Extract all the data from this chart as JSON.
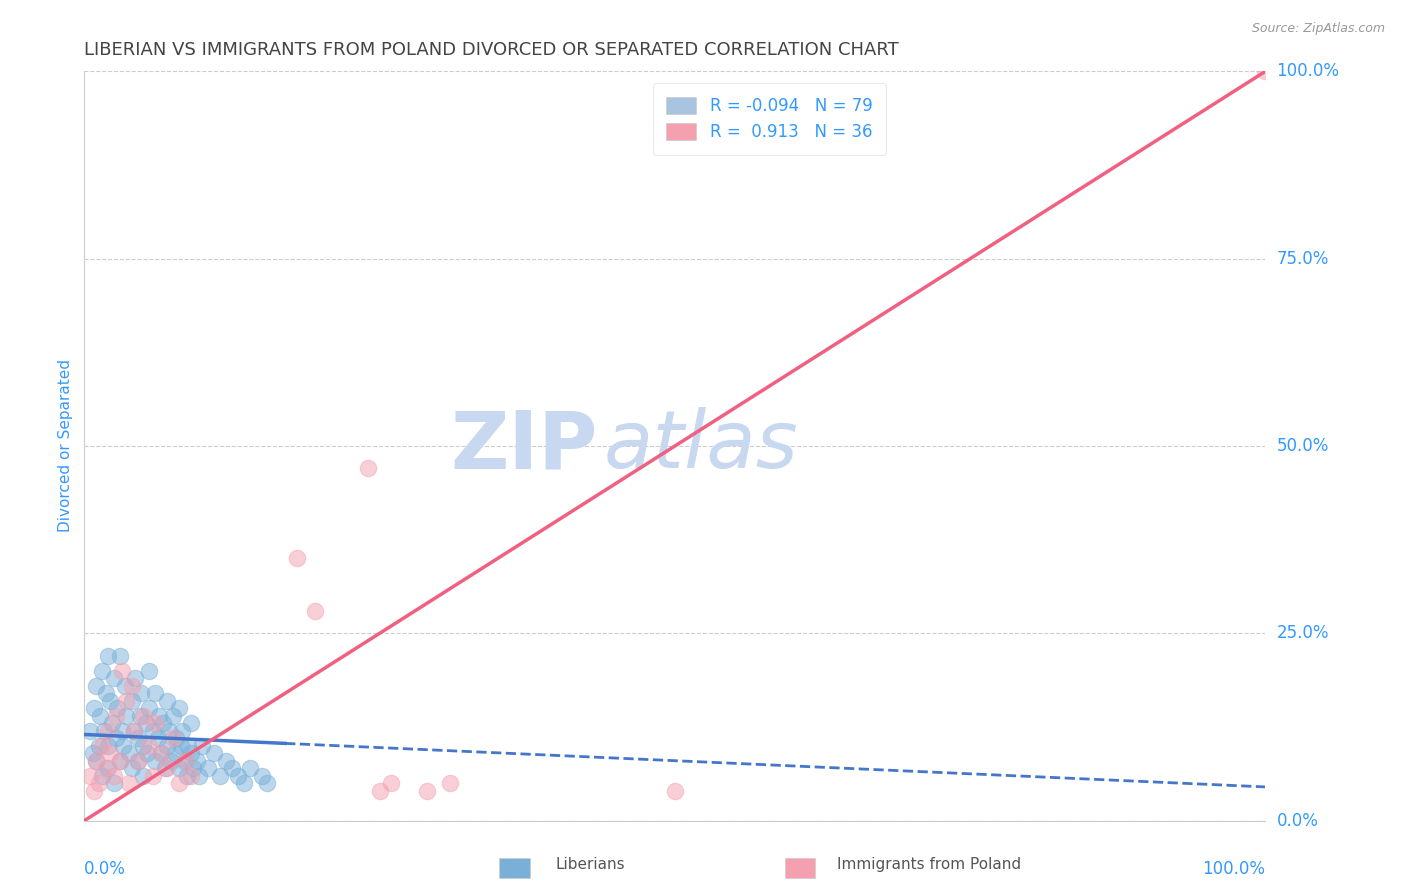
{
  "title": "LIBERIAN VS IMMIGRANTS FROM POLAND DIVORCED OR SEPARATED CORRELATION CHART",
  "source": "Source: ZipAtlas.com",
  "ylabel": "Divorced or Separated",
  "ytick_labels": [
    "0.0%",
    "25.0%",
    "50.0%",
    "75.0%",
    "100.0%"
  ],
  "ytick_values": [
    0.0,
    0.25,
    0.5,
    0.75,
    1.0
  ],
  "xlim": [
    0.0,
    1.0
  ],
  "ylim": [
    0.0,
    1.0
  ],
  "legend_entries": [
    {
      "color": "#a8c4e0",
      "R": "-0.094",
      "N": "79"
    },
    {
      "color": "#f4a0b0",
      "R": " 0.913",
      "N": "36"
    }
  ],
  "legend_R_color": "#3399ff",
  "watermark_zip": "ZIP",
  "watermark_atlas": "atlas",
  "watermark_color": "#c8d8f0",
  "blue_scatter_color": "#7ab0d8",
  "pink_scatter_color": "#f4a0b0",
  "blue_line_color": "#4477cc",
  "pink_line_color": "#f06080",
  "background_color": "#ffffff",
  "grid_color": "#cccccc",
  "axis_label_color": "#3399ff",
  "title_color": "#444444",
  "blue_dots": [
    [
      0.005,
      0.12
    ],
    [
      0.007,
      0.09
    ],
    [
      0.008,
      0.15
    ],
    [
      0.01,
      0.18
    ],
    [
      0.01,
      0.08
    ],
    [
      0.012,
      0.1
    ],
    [
      0.013,
      0.14
    ],
    [
      0.015,
      0.2
    ],
    [
      0.015,
      0.06
    ],
    [
      0.017,
      0.12
    ],
    [
      0.018,
      0.17
    ],
    [
      0.02,
      0.22
    ],
    [
      0.02,
      0.07
    ],
    [
      0.02,
      0.1
    ],
    [
      0.022,
      0.16
    ],
    [
      0.023,
      0.13
    ],
    [
      0.025,
      0.19
    ],
    [
      0.025,
      0.05
    ],
    [
      0.027,
      0.11
    ],
    [
      0.028,
      0.15
    ],
    [
      0.03,
      0.08
    ],
    [
      0.03,
      0.22
    ],
    [
      0.032,
      0.12
    ],
    [
      0.033,
      0.1
    ],
    [
      0.034,
      0.18
    ],
    [
      0.035,
      0.14
    ],
    [
      0.038,
      0.09
    ],
    [
      0.04,
      0.16
    ],
    [
      0.04,
      0.07
    ],
    [
      0.042,
      0.12
    ],
    [
      0.043,
      0.19
    ],
    [
      0.045,
      0.11
    ],
    [
      0.045,
      0.08
    ],
    [
      0.047,
      0.14
    ],
    [
      0.048,
      0.17
    ],
    [
      0.05,
      0.1
    ],
    [
      0.05,
      0.06
    ],
    [
      0.052,
      0.13
    ],
    [
      0.053,
      0.09
    ],
    [
      0.055,
      0.15
    ],
    [
      0.055,
      0.2
    ],
    [
      0.058,
      0.12
    ],
    [
      0.06,
      0.08
    ],
    [
      0.06,
      0.17
    ],
    [
      0.062,
      0.11
    ],
    [
      0.063,
      0.14
    ],
    [
      0.065,
      0.09
    ],
    [
      0.067,
      0.13
    ],
    [
      0.068,
      0.07
    ],
    [
      0.07,
      0.16
    ],
    [
      0.07,
      0.1
    ],
    [
      0.072,
      0.12
    ],
    [
      0.073,
      0.08
    ],
    [
      0.075,
      0.14
    ],
    [
      0.077,
      0.09
    ],
    [
      0.078,
      0.11
    ],
    [
      0.08,
      0.07
    ],
    [
      0.08,
      0.15
    ],
    [
      0.082,
      0.1
    ],
    [
      0.083,
      0.12
    ],
    [
      0.085,
      0.08
    ],
    [
      0.087,
      0.06
    ],
    [
      0.088,
      0.1
    ],
    [
      0.09,
      0.09
    ],
    [
      0.09,
      0.13
    ],
    [
      0.092,
      0.07
    ],
    [
      0.095,
      0.08
    ],
    [
      0.097,
      0.06
    ],
    [
      0.1,
      0.1
    ],
    [
      0.105,
      0.07
    ],
    [
      0.11,
      0.09
    ],
    [
      0.115,
      0.06
    ],
    [
      0.12,
      0.08
    ],
    [
      0.125,
      0.07
    ],
    [
      0.13,
      0.06
    ],
    [
      0.135,
      0.05
    ],
    [
      0.14,
      0.07
    ],
    [
      0.15,
      0.06
    ],
    [
      0.155,
      0.05
    ]
  ],
  "pink_dots": [
    [
      0.005,
      0.06
    ],
    [
      0.008,
      0.04
    ],
    [
      0.01,
      0.08
    ],
    [
      0.012,
      0.05
    ],
    [
      0.015,
      0.1
    ],
    [
      0.018,
      0.07
    ],
    [
      0.02,
      0.12
    ],
    [
      0.022,
      0.09
    ],
    [
      0.025,
      0.06
    ],
    [
      0.027,
      0.14
    ],
    [
      0.03,
      0.08
    ],
    [
      0.032,
      0.2
    ],
    [
      0.035,
      0.16
    ],
    [
      0.038,
      0.05
    ],
    [
      0.04,
      0.18
    ],
    [
      0.042,
      0.12
    ],
    [
      0.045,
      0.08
    ],
    [
      0.05,
      0.14
    ],
    [
      0.055,
      0.1
    ],
    [
      0.058,
      0.06
    ],
    [
      0.06,
      0.13
    ],
    [
      0.065,
      0.09
    ],
    [
      0.07,
      0.07
    ],
    [
      0.075,
      0.11
    ],
    [
      0.08,
      0.05
    ],
    [
      0.085,
      0.08
    ],
    [
      0.09,
      0.06
    ],
    [
      0.18,
      0.35
    ],
    [
      0.195,
      0.28
    ],
    [
      0.24,
      0.47
    ],
    [
      0.25,
      0.04
    ],
    [
      0.26,
      0.05
    ],
    [
      0.29,
      0.04
    ],
    [
      0.31,
      0.05
    ],
    [
      0.5,
      0.04
    ],
    [
      1.0,
      1.0
    ]
  ],
  "blue_line_x": [
    0.0,
    1.0
  ],
  "blue_line_y_intercept": 0.115,
  "blue_line_slope": -0.07,
  "pink_line_x": [
    0.0,
    1.0
  ],
  "pink_line_y_intercept": 0.0,
  "pink_line_slope": 1.0
}
